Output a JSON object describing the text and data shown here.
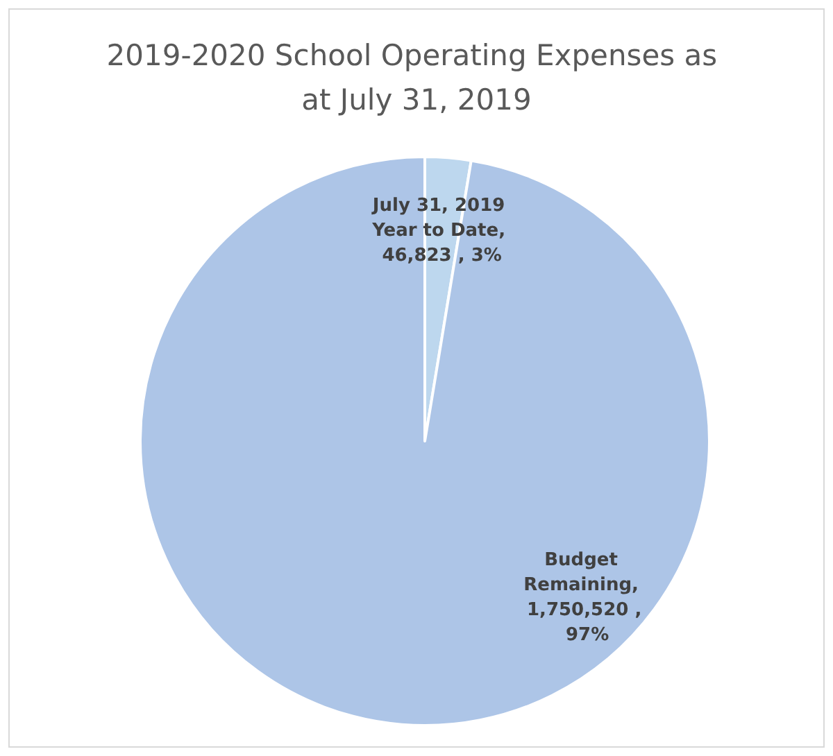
{
  "chart_data": {
    "type": "pie",
    "title": "2019-2020 School Operating Expenses as at July 31, 2019",
    "categories": [
      "July 31, 2019 Year to Date",
      "Budget Remaining"
    ],
    "values": [
      46823,
      1750520
    ],
    "value_labels": [
      ", 46,823 , 3%",
      ", 1,750,520 , 97%"
    ],
    "colors": [
      "#bdd7ee",
      "#adc5e7"
    ],
    "legend": false
  }
}
